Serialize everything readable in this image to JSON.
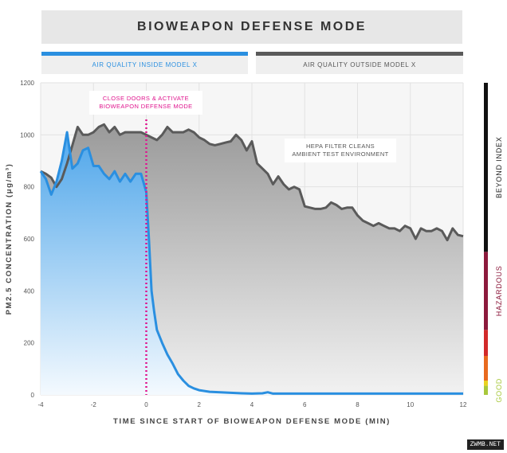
{
  "title": "BIOWEAPON DEFENSE MODE",
  "legend": {
    "inside": "AIR QUALITY INSIDE MODEL X",
    "outside": "AIR QUALITY OUTSIDE MODEL X"
  },
  "colors": {
    "inside": "#2a8fe0",
    "outside": "#5a5a5a",
    "marker": "#e0158e"
  },
  "watermark": "ZWMB.NET",
  "chart_data": {
    "type": "area",
    "xlabel": "TIME SINCE START OF BIOWEAPON DEFENSE MODE (MIN)",
    "ylabel": "PM2.5 CONCENTRATION (μg/m³)",
    "xlim": [
      -4,
      12
    ],
    "ylim": [
      0,
      1200
    ],
    "x_ticks": [
      -4,
      -2,
      0,
      2,
      4,
      6,
      8,
      10,
      12
    ],
    "y_ticks": [
      0,
      200,
      400,
      600,
      800,
      1000,
      1200
    ],
    "grid": true,
    "annotations": [
      {
        "text": [
          "CLOSE DOORS & ACTIVATE",
          "BIOWEAPON DEFENSE MODE"
        ],
        "x": 0,
        "y": 1120,
        "color": "#e0158e"
      },
      {
        "text": [
          "HEPA FILTER CLEANS",
          "AMBIENT TEST ENVIRONMENT"
        ],
        "x": 6.8,
        "y": 930,
        "color": "#555555"
      }
    ],
    "marker_line_x": 0,
    "air_quality_scale": [
      {
        "label": "GOOD",
        "from": 0,
        "to": 35,
        "color": "#a8c83c"
      },
      {
        "label": "",
        "from": 35,
        "to": 55,
        "color": "#e8d220"
      },
      {
        "label": "",
        "from": 55,
        "to": 150,
        "color": "#e86a1e"
      },
      {
        "label": "",
        "from": 150,
        "to": 250,
        "color": "#d22a2a"
      },
      {
        "label": "HAZARDOUS",
        "from": 250,
        "to": 550,
        "color": "#8c1a3c"
      },
      {
        "label": "BEYOND INDEX",
        "from": 550,
        "to": 1200,
        "color": "#111111"
      }
    ],
    "series": [
      {
        "name": "AIR QUALITY OUTSIDE MODEL X",
        "x": [
          -4,
          -3.8,
          -3.6,
          -3.4,
          -3.2,
          -3.0,
          -2.8,
          -2.6,
          -2.4,
          -2.2,
          -2.0,
          -1.8,
          -1.6,
          -1.4,
          -1.2,
          -1.0,
          -0.8,
          -0.6,
          -0.4,
          -0.2,
          0,
          0.2,
          0.4,
          0.6,
          0.8,
          1.0,
          1.2,
          1.4,
          1.6,
          1.8,
          2.0,
          2.2,
          2.4,
          2.6,
          2.8,
          3.0,
          3.2,
          3.4,
          3.6,
          3.8,
          4.0,
          4.2,
          4.4,
          4.6,
          4.8,
          5.0,
          5.2,
          5.4,
          5.6,
          5.8,
          6.0,
          6.2,
          6.4,
          6.6,
          6.8,
          7.0,
          7.2,
          7.4,
          7.6,
          7.8,
          8.0,
          8.2,
          8.4,
          8.6,
          8.8,
          9.0,
          9.2,
          9.4,
          9.6,
          9.8,
          10.0,
          10.2,
          10.4,
          10.6,
          10.8,
          11.0,
          11.2,
          11.4,
          11.6,
          11.8,
          12.0
        ],
        "values": [
          860,
          850,
          835,
          800,
          830,
          890,
          960,
          1030,
          1000,
          1000,
          1010,
          1030,
          1040,
          1010,
          1030,
          1000,
          1010,
          1010,
          1010,
          1010,
          1000,
          990,
          980,
          1000,
          1030,
          1010,
          1010,
          1010,
          1020,
          1010,
          990,
          980,
          965,
          960,
          965,
          970,
          975,
          1000,
          980,
          940,
          975,
          890,
          870,
          850,
          810,
          840,
          810,
          790,
          800,
          790,
          725,
          720,
          715,
          715,
          720,
          740,
          730,
          715,
          720,
          720,
          690,
          670,
          660,
          650,
          660,
          650,
          640,
          640,
          630,
          650,
          640,
          600,
          640,
          630,
          630,
          640,
          630,
          595,
          640,
          615,
          610
        ]
      },
      {
        "name": "AIR QUALITY INSIDE MODEL X",
        "x": [
          -4,
          -3.8,
          -3.6,
          -3.4,
          -3.2,
          -3.0,
          -2.8,
          -2.6,
          -2.4,
          -2.2,
          -2.0,
          -1.8,
          -1.6,
          -1.4,
          -1.2,
          -1.0,
          -0.8,
          -0.6,
          -0.4,
          -0.2,
          0,
          0.1,
          0.2,
          0.3,
          0.4,
          0.6,
          0.8,
          1.0,
          1.2,
          1.4,
          1.6,
          1.8,
          2.0,
          2.4,
          2.8,
          3.2,
          3.6,
          4.0,
          4.4,
          4.6,
          4.8,
          5.2,
          6.0,
          7.0,
          8.0,
          9.0,
          10.0,
          11.0,
          12.0
        ],
        "values": [
          860,
          830,
          770,
          820,
          900,
          1010,
          870,
          890,
          940,
          950,
          880,
          880,
          850,
          830,
          860,
          820,
          850,
          820,
          850,
          850,
          780,
          600,
          400,
          320,
          250,
          200,
          155,
          120,
          80,
          55,
          35,
          25,
          18,
          12,
          10,
          8,
          6,
          5,
          6,
          10,
          5,
          5,
          5,
          5,
          5,
          5,
          5,
          5,
          5
        ]
      }
    ]
  }
}
